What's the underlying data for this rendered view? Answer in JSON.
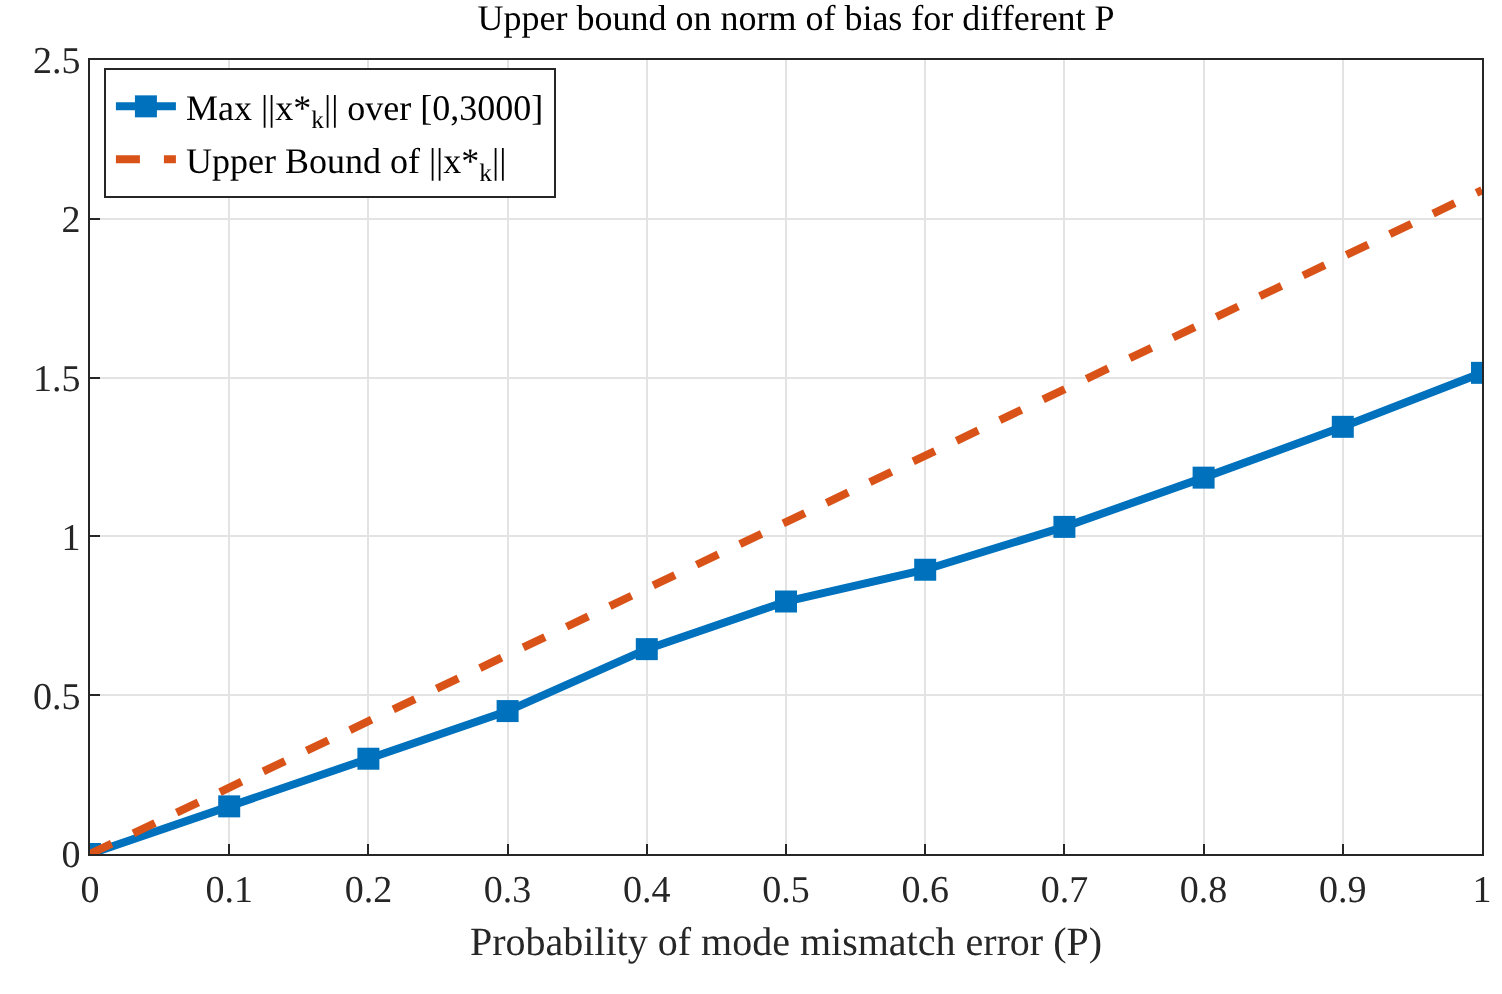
{
  "chart_data": {
    "type": "line",
    "title": "Upper bound on norm of bias for different P",
    "xlabel": "Probability of mode mismatch error (P)",
    "x": [
      0,
      0.1,
      0.2,
      0.3,
      0.4,
      0.5,
      0.6,
      0.7,
      0.8,
      0.9,
      1
    ],
    "series": [
      {
        "name": "Max ||x*$_{k}$|| over [0,3000]",
        "color": "#0072bd",
        "marker": "square",
        "line_style": "solid",
        "values": [
          0,
          0.15,
          0.3,
          0.45,
          0.645,
          0.795,
          0.895,
          1.03,
          1.185,
          1.345,
          1.515
        ]
      },
      {
        "name": "Upper Bound of ||x*$_{k}$||",
        "color": "#d95319",
        "marker": "none",
        "line_style": "dashed",
        "x": [
          0,
          1
        ],
        "values": [
          0,
          2.09
        ]
      }
    ],
    "xlim": [
      0,
      1
    ],
    "xticks": [
      0,
      0.1,
      0.2,
      0.3,
      0.4,
      0.5,
      0.6,
      0.7,
      0.8,
      0.9,
      1
    ],
    "ylim": [
      0,
      2.5
    ],
    "yticks": [
      0,
      0.5,
      1,
      1.5,
      2,
      2.5
    ],
    "grid": true,
    "legend": "top left"
  }
}
